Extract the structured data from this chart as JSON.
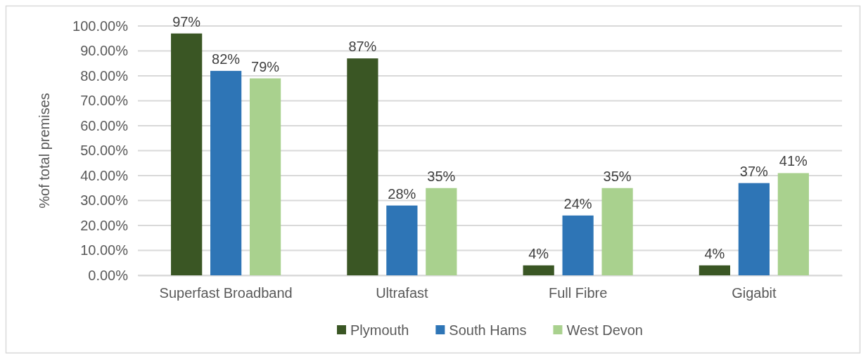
{
  "chart_data": {
    "type": "bar",
    "ylabel": "%of total premises",
    "categories": [
      "Superfast Broadband",
      "Ultrafast",
      "Full Fibre",
      "Gigabit"
    ],
    "series": [
      {
        "name": "Plymouth",
        "color": "#3a5624",
        "values": [
          97,
          87,
          4,
          4
        ],
        "value_labels": [
          "97%",
          "87%",
          "4%",
          "4%"
        ]
      },
      {
        "name": "South Hams",
        "color": "#2e75b6",
        "values": [
          82,
          28,
          24,
          37
        ],
        "value_labels": [
          "82%",
          "28%",
          "24%",
          "37%"
        ]
      },
      {
        "name": "West Devon",
        "color": "#a9d18e",
        "values": [
          79,
          35,
          35,
          41
        ],
        "value_labels": [
          "79%",
          "35%",
          "35%",
          "41%"
        ]
      }
    ],
    "ylim": [
      0,
      100
    ],
    "yticks": [
      {
        "value": 0,
        "label": "0.00%"
      },
      {
        "value": 10,
        "label": "10.00%"
      },
      {
        "value": 20,
        "label": "20.00%"
      },
      {
        "value": 30,
        "label": "30.00%"
      },
      {
        "value": 40,
        "label": "40.00%"
      },
      {
        "value": 50,
        "label": "50.00%"
      },
      {
        "value": 60,
        "label": "60.00%"
      },
      {
        "value": 70,
        "label": "70.00%"
      },
      {
        "value": 80,
        "label": "80.00%"
      },
      {
        "value": 90,
        "label": "90.00%"
      },
      {
        "value": 100,
        "label": "100.00%"
      }
    ],
    "grid": "y",
    "legend": "bottom"
  }
}
